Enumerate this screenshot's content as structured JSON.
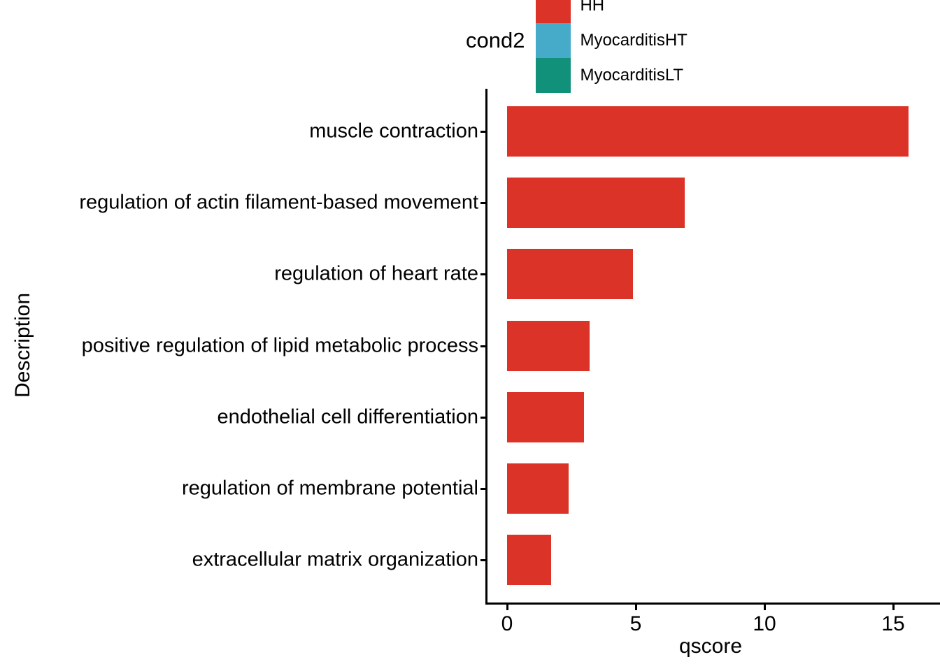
{
  "legend": {
    "title": "cond2",
    "items": [
      {
        "label": "HH",
        "color": "#db3327"
      },
      {
        "label": "MyocarditisHT",
        "color": "#45abc8"
      },
      {
        "label": "MyocarditisLT",
        "color": "#11917a"
      }
    ]
  },
  "chart_data": {
    "type": "bar",
    "orientation": "horizontal",
    "title": "",
    "xlabel": "qscore",
    "ylabel": "Description",
    "series_name": "cond2",
    "group_shown": "HH",
    "bar_color": "#db3327",
    "categories": [
      "muscle contraction",
      "regulation of actin filament-based movement",
      "regulation of heart rate",
      "positive regulation of lipid metabolic process",
      "endothelial cell differentiation",
      "regulation of membrane potential",
      "extracellular matrix organization"
    ],
    "values": [
      15.6,
      6.9,
      4.9,
      3.2,
      3.0,
      2.4,
      1.7
    ],
    "xticks": [
      0,
      5,
      10,
      15
    ],
    "xlim": [
      -0.8,
      16.4
    ],
    "grid": false,
    "legend_position": "top"
  }
}
